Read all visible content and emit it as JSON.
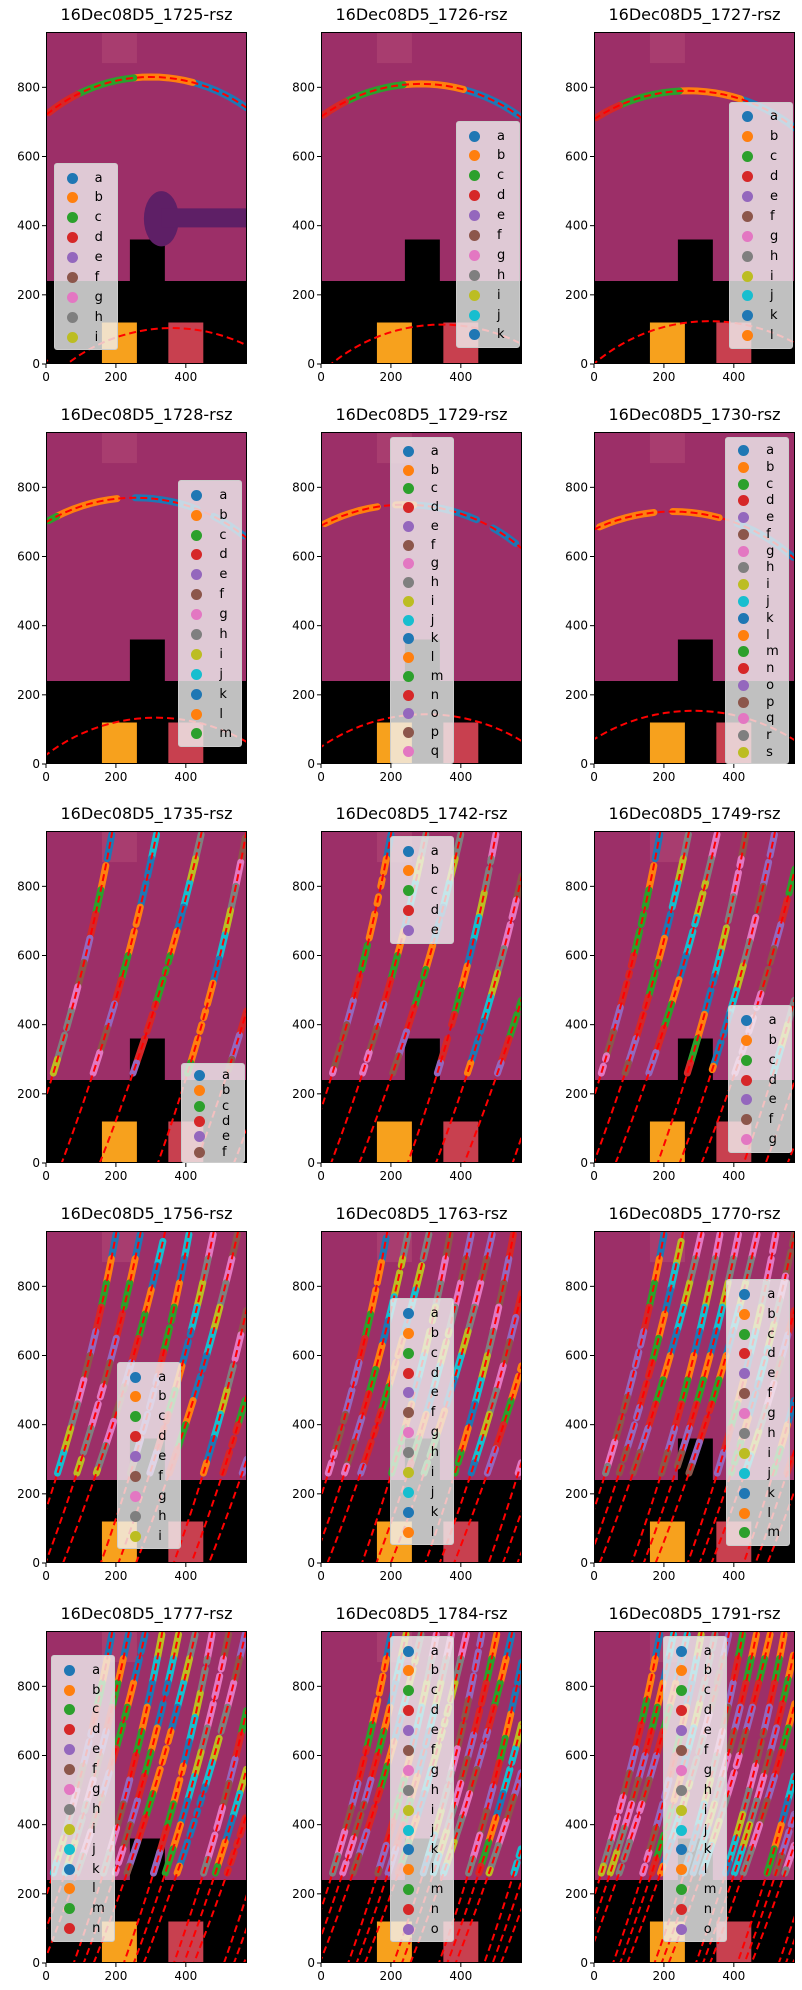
{
  "figure": {
    "type": "image-grid",
    "rows": 5,
    "cols": 3
  },
  "palette": [
    "#1f77b4",
    "#ff7f0e",
    "#2ca02c",
    "#d62728",
    "#9467bd",
    "#8c564b",
    "#e377c2",
    "#7f7f7f",
    "#bcbd22",
    "#17becf"
  ],
  "fit_line_color": "#ff0000",
  "chart_data": [
    {
      "type": "scatter",
      "title": "16Dec08D5_1725-rsz",
      "xlim": [
        0,
        575
      ],
      "ylim": [
        0,
        960
      ],
      "xticks": [
        "0",
        "200",
        "400"
      ],
      "yticks": [
        "0",
        "200",
        "400",
        "600",
        "800"
      ],
      "legend_placement": "lower-left",
      "legend": [
        "a",
        "b",
        "c",
        "d",
        "e",
        "f",
        "g",
        "h",
        "i"
      ]
    },
    {
      "type": "scatter",
      "title": "16Dec08D5_1726-rsz",
      "xlim": [
        0,
        575
      ],
      "ylim": [
        0,
        960
      ],
      "xticks": [
        "0",
        "200",
        "400"
      ],
      "yticks": [
        "0",
        "200",
        "400",
        "600",
        "800"
      ],
      "legend_placement": "right",
      "legend": [
        "a",
        "b",
        "c",
        "d",
        "e",
        "f",
        "g",
        "h",
        "i",
        "j",
        "k"
      ]
    },
    {
      "type": "scatter",
      "title": "16Dec08D5_1727-rsz",
      "xlim": [
        0,
        575
      ],
      "ylim": [
        0,
        960
      ],
      "xticks": [
        "0",
        "200",
        "400"
      ],
      "yticks": [
        "0",
        "200",
        "400",
        "600",
        "800"
      ],
      "legend_placement": "right",
      "legend": [
        "a",
        "b",
        "c",
        "d",
        "e",
        "f",
        "g",
        "h",
        "i",
        "j",
        "k",
        "l"
      ]
    },
    {
      "type": "scatter",
      "title": "16Dec08D5_1728-rsz",
      "xlim": [
        0,
        575
      ],
      "ylim": [
        0,
        960
      ],
      "xticks": [
        "0",
        "200",
        "400"
      ],
      "yticks": [
        "0",
        "200",
        "400",
        "600",
        "800"
      ],
      "legend_placement": "right",
      "legend": [
        "a",
        "b",
        "c",
        "d",
        "e",
        "f",
        "g",
        "h",
        "i",
        "j",
        "k",
        "l",
        "m"
      ]
    },
    {
      "type": "scatter",
      "title": "16Dec08D5_1729-rsz",
      "xlim": [
        0,
        575
      ],
      "ylim": [
        0,
        960
      ],
      "xticks": [
        "0",
        "200",
        "400"
      ],
      "yticks": [
        "0",
        "200",
        "400",
        "600",
        "800"
      ],
      "legend_placement": "upper-center",
      "legend": [
        "a",
        "b",
        "c",
        "d",
        "e",
        "f",
        "g",
        "h",
        "i",
        "j",
        "k",
        "l",
        "m",
        "n",
        "o",
        "p",
        "q"
      ]
    },
    {
      "type": "scatter",
      "title": "16Dec08D5_1730-rsz",
      "xlim": [
        0,
        575
      ],
      "ylim": [
        0,
        960
      ],
      "xticks": [
        "0",
        "200",
        "400"
      ],
      "yticks": [
        "0",
        "200",
        "400",
        "600",
        "800"
      ],
      "legend_placement": "upper-right",
      "legend": [
        "a",
        "b",
        "c",
        "d",
        "e",
        "f",
        "g",
        "h",
        "i",
        "j",
        "k",
        "l",
        "m",
        "n",
        "o",
        "p",
        "q",
        "r",
        "s"
      ]
    },
    {
      "type": "scatter",
      "title": "16Dec08D5_1735-rsz",
      "xlim": [
        0,
        575
      ],
      "ylim": [
        0,
        960
      ],
      "xticks": [
        "0",
        "200",
        "400"
      ],
      "yticks": [
        "0",
        "200",
        "400",
        "600",
        "800"
      ],
      "legend_placement": "lower-right",
      "legend": [
        "a",
        "b",
        "c",
        "d",
        "e",
        "f"
      ]
    },
    {
      "type": "scatter",
      "title": "16Dec08D5_1742-rsz",
      "xlim": [
        0,
        575
      ],
      "ylim": [
        0,
        960
      ],
      "xticks": [
        "0",
        "200",
        "400"
      ],
      "yticks": [
        "0",
        "200",
        "400",
        "600",
        "800"
      ],
      "legend_placement": "upper-center",
      "legend": [
        "a",
        "b",
        "c",
        "d",
        "e"
      ]
    },
    {
      "type": "scatter",
      "title": "16Dec08D5_1749-rsz",
      "xlim": [
        0,
        575
      ],
      "ylim": [
        0,
        960
      ],
      "xticks": [
        "0",
        "200",
        "400"
      ],
      "yticks": [
        "0",
        "200",
        "400",
        "600",
        "800"
      ],
      "legend_placement": "lower-right",
      "legend": [
        "a",
        "b",
        "c",
        "d",
        "e",
        "f",
        "g"
      ]
    },
    {
      "type": "scatter",
      "title": "16Dec08D5_1756-rsz",
      "xlim": [
        0,
        575
      ],
      "ylim": [
        0,
        960
      ],
      "xticks": [
        "0",
        "200",
        "400"
      ],
      "yticks": [
        "0",
        "200",
        "400",
        "600",
        "800"
      ],
      "legend_placement": "center",
      "legend": [
        "a",
        "b",
        "c",
        "d",
        "e",
        "f",
        "g",
        "h",
        "i"
      ]
    },
    {
      "type": "scatter",
      "title": "16Dec08D5_1763-rsz",
      "xlim": [
        0,
        575
      ],
      "ylim": [
        0,
        960
      ],
      "xticks": [
        "0",
        "200",
        "400"
      ],
      "yticks": [
        "0",
        "200",
        "400",
        "600",
        "800"
      ],
      "legend_placement": "center",
      "legend": [
        "a",
        "b",
        "c",
        "d",
        "e",
        "f",
        "g",
        "h",
        "i",
        "j",
        "k",
        "l"
      ]
    },
    {
      "type": "scatter",
      "title": "16Dec08D5_1770-rsz",
      "xlim": [
        0,
        575
      ],
      "ylim": [
        0,
        960
      ],
      "xticks": [
        "0",
        "200",
        "400"
      ],
      "yticks": [
        "0",
        "200",
        "400",
        "600",
        "800"
      ],
      "legend_placement": "right",
      "legend": [
        "a",
        "b",
        "c",
        "d",
        "e",
        "f",
        "g",
        "h",
        "i",
        "j",
        "k",
        "l",
        "m"
      ]
    },
    {
      "type": "scatter",
      "title": "16Dec08D5_1777-rsz",
      "xlim": [
        0,
        575
      ],
      "ylim": [
        0,
        960
      ],
      "xticks": [
        "0",
        "200",
        "400"
      ],
      "yticks": [
        "0",
        "200",
        "400",
        "600",
        "800"
      ],
      "legend_placement": "upper-left",
      "legend": [
        "a",
        "b",
        "c",
        "d",
        "e",
        "f",
        "g",
        "h",
        "i",
        "j",
        "k",
        "l",
        "m",
        "n"
      ]
    },
    {
      "type": "scatter",
      "title": "16Dec08D5_1784-rsz",
      "xlim": [
        0,
        575
      ],
      "ylim": [
        0,
        960
      ],
      "xticks": [
        "0",
        "200",
        "400"
      ],
      "yticks": [
        "0",
        "200",
        "400",
        "600",
        "800"
      ],
      "legend_placement": "upper-center",
      "legend": [
        "a",
        "b",
        "c",
        "d",
        "e",
        "f",
        "g",
        "h",
        "i",
        "j",
        "k",
        "l",
        "m",
        "n",
        "o"
      ]
    },
    {
      "type": "scatter",
      "title": "16Dec08D5_1791-rsz",
      "xlim": [
        0,
        575
      ],
      "ylim": [
        0,
        960
      ],
      "xticks": [
        "0",
        "200",
        "400"
      ],
      "yticks": [
        "0",
        "200",
        "400",
        "600",
        "800"
      ],
      "legend_placement": "upper-center",
      "legend": [
        "a",
        "b",
        "c",
        "d",
        "e",
        "f",
        "g",
        "h",
        "i",
        "j",
        "k",
        "l",
        "m",
        "n",
        "o"
      ]
    }
  ]
}
